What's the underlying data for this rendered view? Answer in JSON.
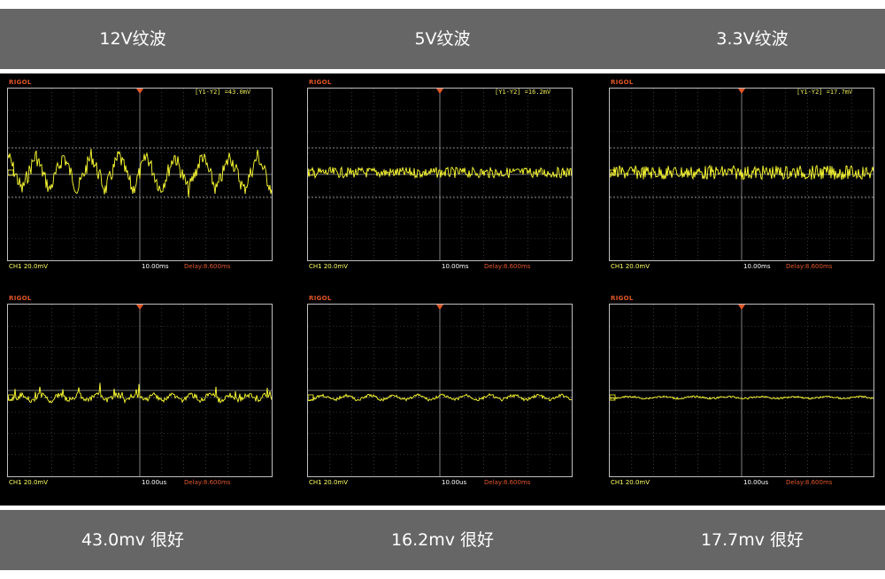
{
  "header": {
    "labels": [
      "12V纹波",
      "5V纹波",
      "3.3V纹波"
    ]
  },
  "footer": {
    "labels": [
      "43.0mv 很好",
      "16.2mv 很好",
      "17.7mv 很好"
    ]
  },
  "scopes": {
    "brand": "RIGOL",
    "ch_label": "CH1 20.0mV",
    "delay_label": "Delay:8.600ms",
    "top_row": {
      "timebase": "10.00ms",
      "measurements": [
        "[Y1-Y2]  =43.0mV",
        "[Y1-Y2]  =16.2mV",
        "[Y1-Y2]  =17.7mV"
      ]
    },
    "bottom_row": {
      "timebase": "10.00us"
    }
  },
  "colors": {
    "trace": "#ffff33",
    "brand": "#e0572a",
    "band": "#666666",
    "screen_bg": "#000000"
  }
}
